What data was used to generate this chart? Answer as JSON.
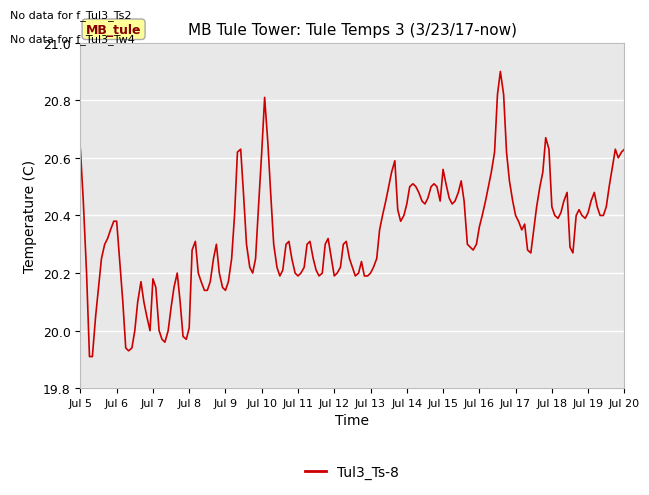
{
  "title": "MB Tule Tower: Tule Temps 3 (3/23/17-now)",
  "xlabel": "Time",
  "ylabel": "Temperature (C)",
  "ylim": [
    19.8,
    21.0
  ],
  "yticks": [
    19.8,
    20.0,
    20.2,
    20.4,
    20.6,
    20.8,
    21.0
  ],
  "xtick_labels": [
    "Jul 5",
    "Jul 6",
    "Jul 7",
    "Jul 8",
    "Jul 9",
    "Jul 10",
    "Jul 11",
    "Jul 12",
    "Jul 13",
    "Jul 14",
    "Jul 15",
    "Jul 16",
    "Jul 17",
    "Jul 18",
    "Jul 19",
    "Jul 20"
  ],
  "line_color": "#cc0000",
  "bg_color": "#e8e8e8",
  "legend_label": "Tul3_Ts-8",
  "legend_line_color": "#cc0000",
  "no_data_texts": [
    "No data for f_Tul3_Ts2",
    "No data for f_Tul3_Tw4"
  ],
  "mb_tule_label": "MB_tule",
  "mb_tule_box_color": "#ffff99",
  "mb_tule_box_edge": "#aaaaaa",
  "mb_tule_text_color": "#880000",
  "x_values": [
    5.0,
    5.08,
    5.17,
    5.25,
    5.33,
    5.42,
    5.5,
    5.58,
    5.67,
    5.75,
    5.83,
    5.92,
    6.0,
    6.08,
    6.17,
    6.25,
    6.33,
    6.42,
    6.5,
    6.58,
    6.67,
    6.75,
    6.83,
    6.92,
    7.0,
    7.08,
    7.17,
    7.25,
    7.33,
    7.42,
    7.5,
    7.58,
    7.67,
    7.75,
    7.83,
    7.92,
    8.0,
    8.08,
    8.17,
    8.25,
    8.33,
    8.42,
    8.5,
    8.58,
    8.67,
    8.75,
    8.83,
    8.92,
    9.0,
    9.08,
    9.17,
    9.25,
    9.33,
    9.42,
    9.5,
    9.58,
    9.67,
    9.75,
    9.83,
    9.92,
    10.0,
    10.08,
    10.17,
    10.25,
    10.33,
    10.42,
    10.5,
    10.58,
    10.67,
    10.75,
    10.83,
    10.92,
    11.0,
    11.08,
    11.17,
    11.25,
    11.33,
    11.42,
    11.5,
    11.58,
    11.67,
    11.75,
    11.83,
    11.92,
    12.0,
    12.08,
    12.17,
    12.25,
    12.33,
    12.42,
    12.5,
    12.58,
    12.67,
    12.75,
    12.83,
    12.92,
    13.0,
    13.08,
    13.17,
    13.25,
    13.33,
    13.42,
    13.5,
    13.58,
    13.67,
    13.75,
    13.83,
    13.92,
    14.0,
    14.08,
    14.17,
    14.25,
    14.33,
    14.42,
    14.5,
    14.58,
    14.67,
    14.75,
    14.83,
    14.92,
    15.0,
    15.08,
    15.17,
    15.25,
    15.33,
    15.42,
    15.5,
    15.58,
    15.67,
    15.75,
    15.83,
    15.92,
    16.0,
    16.08,
    16.17,
    16.25,
    16.33,
    16.42,
    16.5,
    16.58,
    16.67,
    16.75,
    16.83,
    16.92,
    17.0,
    17.08,
    17.17,
    17.25,
    17.33,
    17.42,
    17.5,
    17.58,
    17.67,
    17.75,
    17.83,
    17.92,
    18.0,
    18.08,
    18.17,
    18.25,
    18.33,
    18.42,
    18.5,
    18.58,
    18.67,
    18.75,
    18.83,
    18.92,
    19.0,
    19.08,
    19.17,
    19.25,
    19.33,
    19.42,
    19.5,
    19.58,
    19.67,
    19.75,
    19.83,
    19.92,
    20.0
  ],
  "y_values": [
    20.63,
    20.45,
    20.2,
    19.91,
    19.91,
    20.05,
    20.15,
    20.25,
    20.3,
    20.32,
    20.35,
    20.38,
    20.38,
    20.25,
    20.1,
    19.94,
    19.93,
    19.94,
    20.0,
    20.1,
    20.17,
    20.1,
    20.05,
    20.0,
    20.18,
    20.15,
    20.0,
    19.97,
    19.96,
    20.0,
    20.08,
    20.15,
    20.2,
    20.1,
    19.98,
    19.97,
    20.01,
    20.28,
    20.31,
    20.2,
    20.17,
    20.14,
    20.14,
    20.17,
    20.25,
    20.3,
    20.2,
    20.15,
    20.14,
    20.17,
    20.25,
    20.4,
    20.62,
    20.63,
    20.47,
    20.3,
    20.22,
    20.2,
    20.25,
    20.45,
    20.62,
    20.81,
    20.65,
    20.47,
    20.3,
    20.22,
    20.19,
    20.21,
    20.3,
    20.31,
    20.25,
    20.2,
    20.19,
    20.2,
    20.22,
    20.3,
    20.31,
    20.25,
    20.21,
    20.19,
    20.2,
    20.3,
    20.32,
    20.25,
    20.19,
    20.2,
    20.22,
    20.3,
    20.31,
    20.25,
    20.22,
    20.19,
    20.2,
    20.24,
    20.19,
    20.19,
    20.2,
    20.22,
    20.25,
    20.35,
    20.4,
    20.45,
    20.5,
    20.55,
    20.59,
    20.42,
    20.38,
    20.4,
    20.44,
    20.5,
    20.51,
    20.5,
    20.48,
    20.45,
    20.44,
    20.46,
    20.5,
    20.51,
    20.5,
    20.45,
    20.56,
    20.51,
    20.46,
    20.44,
    20.45,
    20.48,
    20.52,
    20.45,
    20.3,
    20.29,
    20.28,
    20.3,
    20.36,
    20.4,
    20.45,
    20.5,
    20.55,
    20.62,
    20.82,
    20.9,
    20.82,
    20.62,
    20.52,
    20.45,
    20.4,
    20.38,
    20.35,
    20.37,
    20.28,
    20.27,
    20.35,
    20.43,
    20.5,
    20.55,
    20.67,
    20.63,
    20.43,
    20.4,
    20.39,
    20.41,
    20.45,
    20.48,
    20.29,
    20.27,
    20.4,
    20.42,
    20.4,
    20.39,
    20.41,
    20.45,
    20.48,
    20.43,
    20.4,
    20.4,
    20.43,
    20.5,
    20.57,
    20.63,
    20.6,
    20.62,
    20.63
  ]
}
